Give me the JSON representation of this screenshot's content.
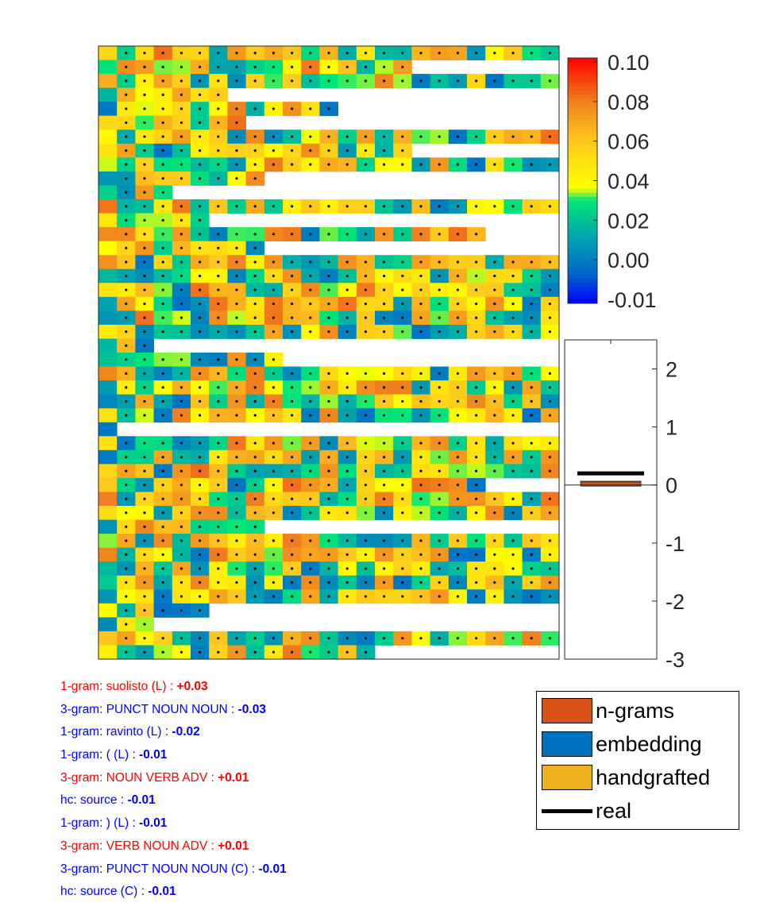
{
  "chart_data": {
    "type": "heatmap",
    "heatmap": {
      "rows": 44,
      "cols": 25,
      "row_lengths": [
        25,
        17,
        25,
        7,
        13,
        8,
        25,
        17,
        25,
        9,
        4,
        25,
        6,
        21,
        9,
        25,
        25,
        25,
        25,
        25,
        25,
        3,
        10,
        25,
        25,
        25,
        25,
        1,
        25,
        25,
        25,
        21,
        25,
        25,
        9,
        25,
        25,
        25,
        25,
        25,
        6,
        3,
        25,
        15
      ],
      "color_range": [
        -0.01,
        0.1
      ],
      "colormap": "jet-like",
      "cell_markers": "dot"
    },
    "colorbar": {
      "ticks": [
        "0.10",
        "0.08",
        "0.06",
        "0.04",
        "0.02",
        "0.00",
        "-0.01"
      ]
    },
    "bar": {
      "type": "stacked-bar",
      "ylim": [
        -3,
        2.5
      ],
      "ytick_labels": [
        "2",
        "1",
        "0",
        "-1",
        "-2",
        "-3"
      ],
      "grid": false,
      "series": [
        {
          "name": "n-grams",
          "value": 0.06,
          "color": "#D95319"
        },
        {
          "name": "embedding",
          "value": -0.02,
          "color": "#0072BD"
        },
        {
          "name": "handgrafted",
          "value": 0.005,
          "color": "#EDB120"
        },
        {
          "name": "real",
          "value": 0.2,
          "color": "#000000",
          "style": "line"
        }
      ]
    },
    "legend": {
      "position": "bottom-right",
      "entries": [
        "n-grams",
        "embedding",
        "handgrafted",
        "real"
      ]
    },
    "features": [
      {
        "label": "1-gram: suolisto (L) :",
        "value": "+0.03",
        "color": "#ff0000"
      },
      {
        "label": "3-gram: PUNCT NOUN NOUN :",
        "value": "-0.03",
        "color": "#0000ff"
      },
      {
        "label": "1-gram: ravinto (L) :",
        "value": "-0.02",
        "color": "#0000ff"
      },
      {
        "label": "1-gram: ( (L) :",
        "value": "-0.01",
        "color": "#0000ff"
      },
      {
        "label": "3-gram: NOUN VERB ADV :",
        "value": "+0.01",
        "color": "#ff0000"
      },
      {
        "label": "hc: source :",
        "value": "-0.01",
        "color": "#0000ff"
      },
      {
        "label": "1-gram: ) (L) :",
        "value": "-0.01",
        "color": "#0000ff"
      },
      {
        "label": "3-gram: VERB NOUN ADV :",
        "value": "+0.01",
        "color": "#ff0000"
      },
      {
        "label": "3-gram: PUNCT NOUN NOUN (C) :",
        "value": "-0.01",
        "color": "#0000ff"
      },
      {
        "label": "hc: source (C) :",
        "value": "-0.01",
        "color": "#0000ff"
      }
    ]
  }
}
